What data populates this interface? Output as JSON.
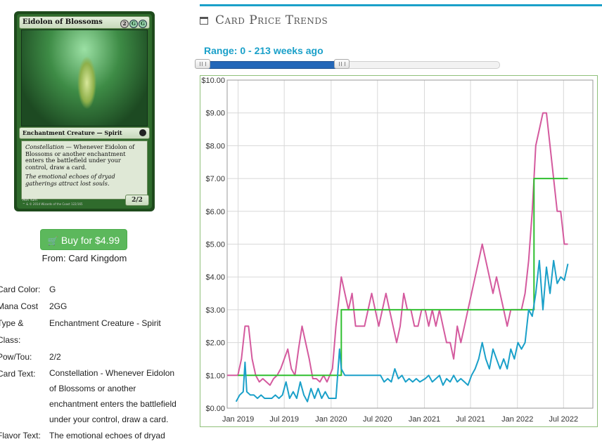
{
  "card": {
    "name": "Eidolon of Blossoms",
    "type_line": "Enchantment Creature — Spirit",
    "rules_keyword": "Constellation",
    "rules_text": " — Whenever Eidolon of Blossoms or another enchantment enters the battlefield under your control, draw a card.",
    "flavor": "The emotional echoes of dryad gatherings attract lost souls.",
    "pt": "2/2",
    "artist": "Min Yum",
    "copyright": "™ & © 2014 Wizards of the Coast 122/165",
    "mana_generic": "2",
    "mana_colored": [
      "G",
      "G"
    ]
  },
  "buy": {
    "label": "Buy for $4.99",
    "icon": "shopping-cart-icon"
  },
  "from": {
    "prefix": "From: ",
    "vendor": "Card Kingdom"
  },
  "details": [
    {
      "key": "Card Color:",
      "value": "G"
    },
    {
      "key": "Mana Cost",
      "value": "2GG"
    },
    {
      "key": "Type & Class:",
      "value": "Enchantment Creature - Spirit"
    },
    {
      "key": "Pow/Tou:",
      "value": "2/2"
    },
    {
      "key": "Card Text:",
      "value": "Constellation - Whenever Eidolon of Blossoms or another enchantment enters the battlefield under your control, draw a card."
    },
    {
      "key": "Flavor Text:",
      "value": "The emotional echoes of dryad"
    }
  ],
  "section": {
    "title": "Card Price Trends",
    "icon": "calendar-icon"
  },
  "range": {
    "label": "Range: 0 - 213 weeks ago"
  },
  "colors": {
    "accent": "#1aa0c9",
    "button": "#5cb85c",
    "series_pink": "#d45a9e",
    "series_green": "#2fbf2f",
    "series_cyan": "#1aa0c9"
  },
  "chart_data": {
    "type": "line",
    "xlabel": "",
    "ylabel": "",
    "ylim": [
      0,
      10
    ],
    "xlim": [
      "2018-11-19",
      "2022-10-24"
    ],
    "y_ticks": [
      "$0.00",
      "$1.00",
      "$2.00",
      "$3.00",
      "$4.00",
      "$5.00",
      "$6.00",
      "$7.00",
      "$8.00",
      "$9.00",
      "$10.00"
    ],
    "x_ticks": [
      {
        "date": "2019-01-01",
        "label": "Jan 2019"
      },
      {
        "date": "2019-07-01",
        "label": "Jul 2019"
      },
      {
        "date": "2020-01-01",
        "label": "Jan 2020"
      },
      {
        "date": "2020-07-01",
        "label": "Jul 2020"
      },
      {
        "date": "2021-01-01",
        "label": "Jan 2021"
      },
      {
        "date": "2021-07-01",
        "label": "Jul 2021"
      },
      {
        "date": "2022-01-01",
        "label": "Jan 2022"
      },
      {
        "date": "2022-07-01",
        "label": "Jul 2022"
      }
    ],
    "grid": true,
    "legend": "none",
    "series": [
      {
        "color": "#d45a9e",
        "points": [
          [
            "2018-11-19",
            1.0
          ],
          [
            "2018-12-10",
            1.0
          ],
          [
            "2018-12-31",
            1.0
          ],
          [
            "2019-01-14",
            1.5
          ],
          [
            "2019-01-28",
            2.5
          ],
          [
            "2019-02-11",
            2.5
          ],
          [
            "2019-02-25",
            1.5
          ],
          [
            "2019-03-11",
            1.0
          ],
          [
            "2019-03-25",
            0.8
          ],
          [
            "2019-04-08",
            0.9
          ],
          [
            "2019-04-22",
            0.8
          ],
          [
            "2019-05-06",
            0.7
          ],
          [
            "2019-05-20",
            0.9
          ],
          [
            "2019-06-03",
            1.0
          ],
          [
            "2019-06-17",
            1.2
          ],
          [
            "2019-07-01",
            1.5
          ],
          [
            "2019-07-15",
            1.8
          ],
          [
            "2019-07-29",
            1.2
          ],
          [
            "2019-08-12",
            1.0
          ],
          [
            "2019-08-26",
            1.8
          ],
          [
            "2019-09-09",
            2.5
          ],
          [
            "2019-09-23",
            2.0
          ],
          [
            "2019-10-07",
            1.5
          ],
          [
            "2019-10-21",
            0.9
          ],
          [
            "2019-11-04",
            0.9
          ],
          [
            "2019-11-18",
            0.8
          ],
          [
            "2019-12-02",
            1.0
          ],
          [
            "2019-12-16",
            0.8
          ],
          [
            "2020-01-06",
            1.2
          ],
          [
            "2020-01-20",
            2.5
          ],
          [
            "2020-02-03",
            3.5
          ],
          [
            "2020-02-10",
            4.0
          ],
          [
            "2020-02-24",
            3.5
          ],
          [
            "2020-03-09",
            3.0
          ],
          [
            "2020-03-23",
            3.5
          ],
          [
            "2020-04-06",
            2.5
          ],
          [
            "2020-04-27",
            2.5
          ],
          [
            "2020-05-11",
            2.5
          ],
          [
            "2020-05-25",
            3.0
          ],
          [
            "2020-06-08",
            3.5
          ],
          [
            "2020-06-22",
            3.0
          ],
          [
            "2020-07-06",
            2.5
          ],
          [
            "2020-07-20",
            3.0
          ],
          [
            "2020-08-03",
            3.5
          ],
          [
            "2020-08-17",
            3.0
          ],
          [
            "2020-08-31",
            2.5
          ],
          [
            "2020-09-14",
            2.0
          ],
          [
            "2020-09-28",
            2.5
          ],
          [
            "2020-10-12",
            3.5
          ],
          [
            "2020-10-26",
            3.0
          ],
          [
            "2020-11-09",
            3.0
          ],
          [
            "2020-11-23",
            2.5
          ],
          [
            "2020-12-07",
            2.5
          ],
          [
            "2020-12-21",
            3.0
          ],
          [
            "2021-01-04",
            3.0
          ],
          [
            "2021-01-18",
            2.5
          ],
          [
            "2021-02-01",
            3.0
          ],
          [
            "2021-02-15",
            2.5
          ],
          [
            "2021-03-01",
            3.0
          ],
          [
            "2021-03-15",
            2.5
          ],
          [
            "2021-03-29",
            2.0
          ],
          [
            "2021-04-12",
            2.0
          ],
          [
            "2021-04-26",
            1.5
          ],
          [
            "2021-05-10",
            2.5
          ],
          [
            "2021-05-24",
            2.0
          ],
          [
            "2021-06-07",
            2.5
          ],
          [
            "2021-06-21",
            3.0
          ],
          [
            "2021-07-05",
            3.5
          ],
          [
            "2021-07-19",
            4.0
          ],
          [
            "2021-08-02",
            4.5
          ],
          [
            "2021-08-16",
            5.0
          ],
          [
            "2021-08-30",
            4.5
          ],
          [
            "2021-09-13",
            4.0
          ],
          [
            "2021-09-27",
            3.5
          ],
          [
            "2021-10-11",
            4.0
          ],
          [
            "2021-10-25",
            3.5
          ],
          [
            "2021-11-08",
            3.0
          ],
          [
            "2021-11-22",
            2.5
          ],
          [
            "2021-12-06",
            3.0
          ],
          [
            "2021-12-20",
            3.0
          ],
          [
            "2022-01-03",
            3.0
          ],
          [
            "2022-01-17",
            3.0
          ],
          [
            "2022-01-31",
            3.5
          ],
          [
            "2022-02-14",
            4.5
          ],
          [
            "2022-02-28",
            6.0
          ],
          [
            "2022-03-14",
            8.0
          ],
          [
            "2022-03-28",
            8.5
          ],
          [
            "2022-04-11",
            9.0
          ],
          [
            "2022-04-25",
            9.0
          ],
          [
            "2022-05-09",
            8.0
          ],
          [
            "2022-05-23",
            7.0
          ],
          [
            "2022-06-06",
            6.0
          ],
          [
            "2022-06-20",
            6.0
          ],
          [
            "2022-07-04",
            5.0
          ],
          [
            "2022-07-18",
            5.0
          ]
        ]
      },
      {
        "color": "#2fbf2f",
        "points": [
          [
            "2018-12-31",
            1.0
          ],
          [
            "2019-12-16",
            1.0
          ],
          [
            "2020-02-10",
            1.0
          ],
          [
            "2020-02-10",
            3.0
          ],
          [
            "2022-02-28",
            3.0
          ],
          [
            "2022-03-07",
            3.0
          ],
          [
            "2022-03-07",
            7.0
          ],
          [
            "2022-07-18",
            7.0
          ]
        ]
      },
      {
        "color": "#1aa0c9",
        "points": [
          [
            "2018-12-24",
            0.2
          ],
          [
            "2019-01-07",
            0.4
          ],
          [
            "2019-01-21",
            0.5
          ],
          [
            "2019-01-28",
            1.4
          ],
          [
            "2019-02-04",
            0.5
          ],
          [
            "2019-02-18",
            0.4
          ],
          [
            "2019-03-04",
            0.4
          ],
          [
            "2019-03-18",
            0.3
          ],
          [
            "2019-04-01",
            0.4
          ],
          [
            "2019-04-15",
            0.3
          ],
          [
            "2019-04-29",
            0.3
          ],
          [
            "2019-05-13",
            0.3
          ],
          [
            "2019-05-27",
            0.4
          ],
          [
            "2019-06-10",
            0.3
          ],
          [
            "2019-06-24",
            0.4
          ],
          [
            "2019-07-08",
            0.8
          ],
          [
            "2019-07-22",
            0.3
          ],
          [
            "2019-08-05",
            0.5
          ],
          [
            "2019-08-19",
            0.3
          ],
          [
            "2019-09-02",
            0.8
          ],
          [
            "2019-09-16",
            0.4
          ],
          [
            "2019-09-30",
            0.2
          ],
          [
            "2019-10-14",
            0.6
          ],
          [
            "2019-10-28",
            0.3
          ],
          [
            "2019-11-11",
            0.6
          ],
          [
            "2019-11-25",
            0.3
          ],
          [
            "2019-12-09",
            0.5
          ],
          [
            "2019-12-23",
            0.3
          ],
          [
            "2020-01-06",
            0.3
          ],
          [
            "2020-01-20",
            0.3
          ],
          [
            "2020-02-03",
            1.8
          ],
          [
            "2020-02-10",
            1.2
          ],
          [
            "2020-02-24",
            1.0
          ],
          [
            "2020-03-09",
            1.0
          ],
          [
            "2020-04-06",
            1.0
          ],
          [
            "2020-05-04",
            1.0
          ],
          [
            "2020-06-01",
            1.0
          ],
          [
            "2020-06-29",
            1.0
          ],
          [
            "2020-07-13",
            1.0
          ],
          [
            "2020-07-27",
            0.8
          ],
          [
            "2020-08-10",
            0.9
          ],
          [
            "2020-08-24",
            0.8
          ],
          [
            "2020-09-07",
            1.2
          ],
          [
            "2020-09-21",
            0.9
          ],
          [
            "2020-10-05",
            1.0
          ],
          [
            "2020-10-19",
            0.8
          ],
          [
            "2020-11-02",
            0.9
          ],
          [
            "2020-11-16",
            0.8
          ],
          [
            "2020-11-30",
            0.9
          ],
          [
            "2020-12-14",
            0.8
          ],
          [
            "2021-01-04",
            0.9
          ],
          [
            "2021-01-18",
            1.0
          ],
          [
            "2021-02-01",
            0.8
          ],
          [
            "2021-02-15",
            0.9
          ],
          [
            "2021-03-01",
            1.0
          ],
          [
            "2021-03-15",
            0.7
          ],
          [
            "2021-03-29",
            0.9
          ],
          [
            "2021-04-12",
            0.8
          ],
          [
            "2021-04-26",
            1.0
          ],
          [
            "2021-05-10",
            0.8
          ],
          [
            "2021-05-24",
            0.9
          ],
          [
            "2021-06-07",
            0.8
          ],
          [
            "2021-06-21",
            0.7
          ],
          [
            "2021-07-05",
            1.0
          ],
          [
            "2021-07-19",
            1.2
          ],
          [
            "2021-08-02",
            1.5
          ],
          [
            "2021-08-16",
            2.0
          ],
          [
            "2021-08-30",
            1.5
          ],
          [
            "2021-09-13",
            1.2
          ],
          [
            "2021-09-27",
            1.8
          ],
          [
            "2021-10-11",
            1.5
          ],
          [
            "2021-10-25",
            1.2
          ],
          [
            "2021-11-08",
            1.5
          ],
          [
            "2021-11-22",
            1.2
          ],
          [
            "2021-12-06",
            1.8
          ],
          [
            "2021-12-20",
            1.5
          ],
          [
            "2022-01-03",
            2.0
          ],
          [
            "2022-01-17",
            1.8
          ],
          [
            "2022-01-31",
            2.0
          ],
          [
            "2022-02-14",
            3.0
          ],
          [
            "2022-02-28",
            2.8
          ],
          [
            "2022-03-14",
            3.5
          ],
          [
            "2022-03-28",
            4.5
          ],
          [
            "2022-04-11",
            3.0
          ],
          [
            "2022-04-25",
            4.3
          ],
          [
            "2022-05-09",
            3.5
          ],
          [
            "2022-05-23",
            4.5
          ],
          [
            "2022-06-06",
            3.8
          ],
          [
            "2022-06-20",
            4.0
          ],
          [
            "2022-07-04",
            3.9
          ],
          [
            "2022-07-18",
            4.4
          ]
        ]
      }
    ]
  }
}
